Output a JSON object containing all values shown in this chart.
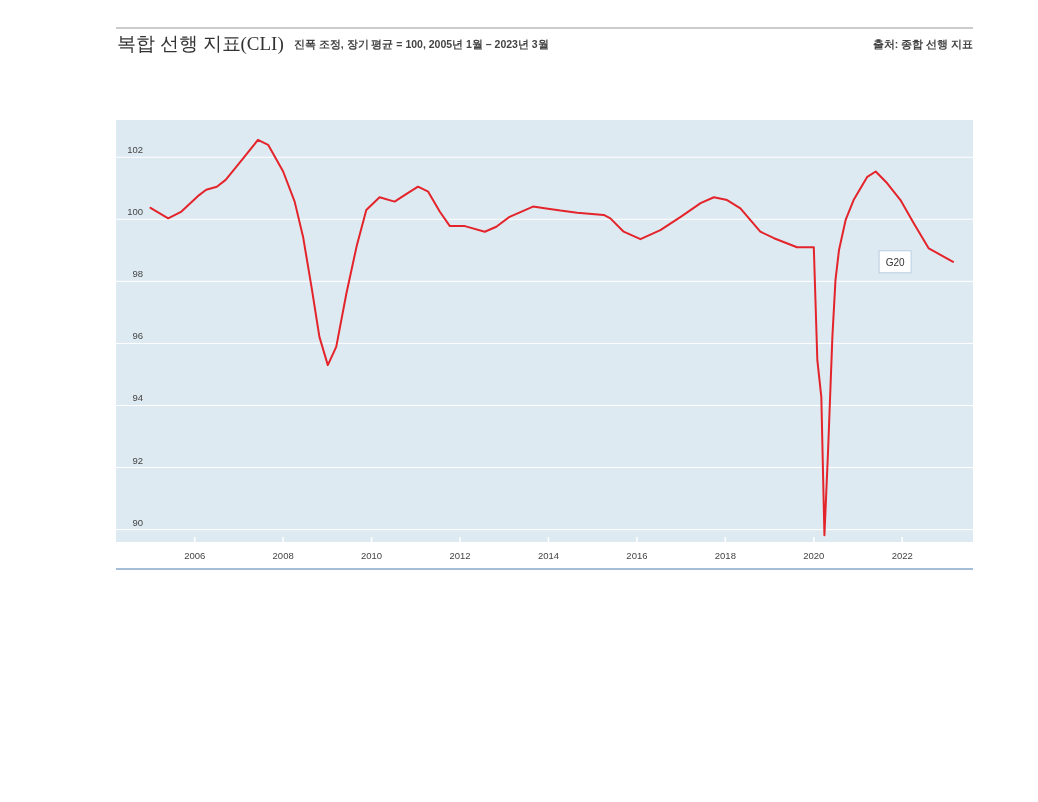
{
  "chart_data": {
    "type": "line",
    "title": "복합 선행 지표(CLI)",
    "subtitle": "진폭 조정, 장기 평균 = 100, 2005년 1월 – 2023년 3월",
    "annotations": [
      "출처: 종합 선행 지표"
    ],
    "x": [
      2005.0,
      2005.4,
      2005.7,
      2006.1,
      2006.26,
      2006.5,
      2006.7,
      2007.1,
      2007.43,
      2007.66,
      2008.0,
      2008.26,
      2008.45,
      2008.64,
      2008.82,
      2009.01,
      2009.2,
      2009.43,
      2009.66,
      2009.88,
      2010.18,
      2010.52,
      2010.79,
      2011.05,
      2011.28,
      2011.54,
      2011.77,
      2012.11,
      2012.56,
      2012.82,
      2013.12,
      2013.65,
      2013.95,
      2014.27,
      2014.65,
      2015.25,
      2015.4,
      2015.7,
      2016.08,
      2016.53,
      2016.99,
      2017.44,
      2017.74,
      2018.04,
      2018.34,
      2018.79,
      2019.1,
      2019.62,
      2020.0,
      2020.08,
      2020.17,
      2020.24,
      2020.32,
      2020.42,
      2020.49,
      2020.57,
      2020.72,
      2020.9,
      2021.21,
      2021.4,
      2021.66,
      2021.96,
      2022.26,
      2022.6,
      2023.15
    ],
    "series": [
      {
        "name": "G20",
        "color": "#e3242b",
        "values": [
          100.37,
          100.03,
          100.25,
          100.78,
          100.95,
          101.05,
          101.27,
          101.97,
          102.56,
          102.4,
          101.54,
          100.57,
          99.44,
          97.83,
          96.21,
          95.3,
          95.89,
          97.61,
          99.12,
          100.3,
          100.71,
          100.57,
          100.82,
          101.05,
          100.89,
          100.25,
          99.78,
          99.78,
          99.6,
          99.76,
          100.08,
          100.41,
          100.35,
          100.28,
          100.21,
          100.14,
          100.03,
          99.6,
          99.36,
          99.65,
          100.08,
          100.52,
          100.71,
          100.62,
          100.35,
          99.6,
          99.39,
          99.1,
          99.1,
          95.46,
          94.28,
          89.82,
          92.45,
          96.21,
          98.04,
          99.01,
          99.98,
          100.62,
          101.37,
          101.54,
          101.16,
          100.62,
          99.87,
          99.06,
          98.63
        ]
      }
    ],
    "xlim": [
      2004.22,
      2023.6
    ],
    "ylim": [
      89.6,
      103.2
    ],
    "xticks": [
      2006,
      2008,
      2010,
      2012,
      2014,
      2016,
      2018,
      2020,
      2022
    ],
    "yticks": [
      90,
      92,
      94,
      96,
      98,
      100,
      102
    ],
    "grid": "y"
  }
}
